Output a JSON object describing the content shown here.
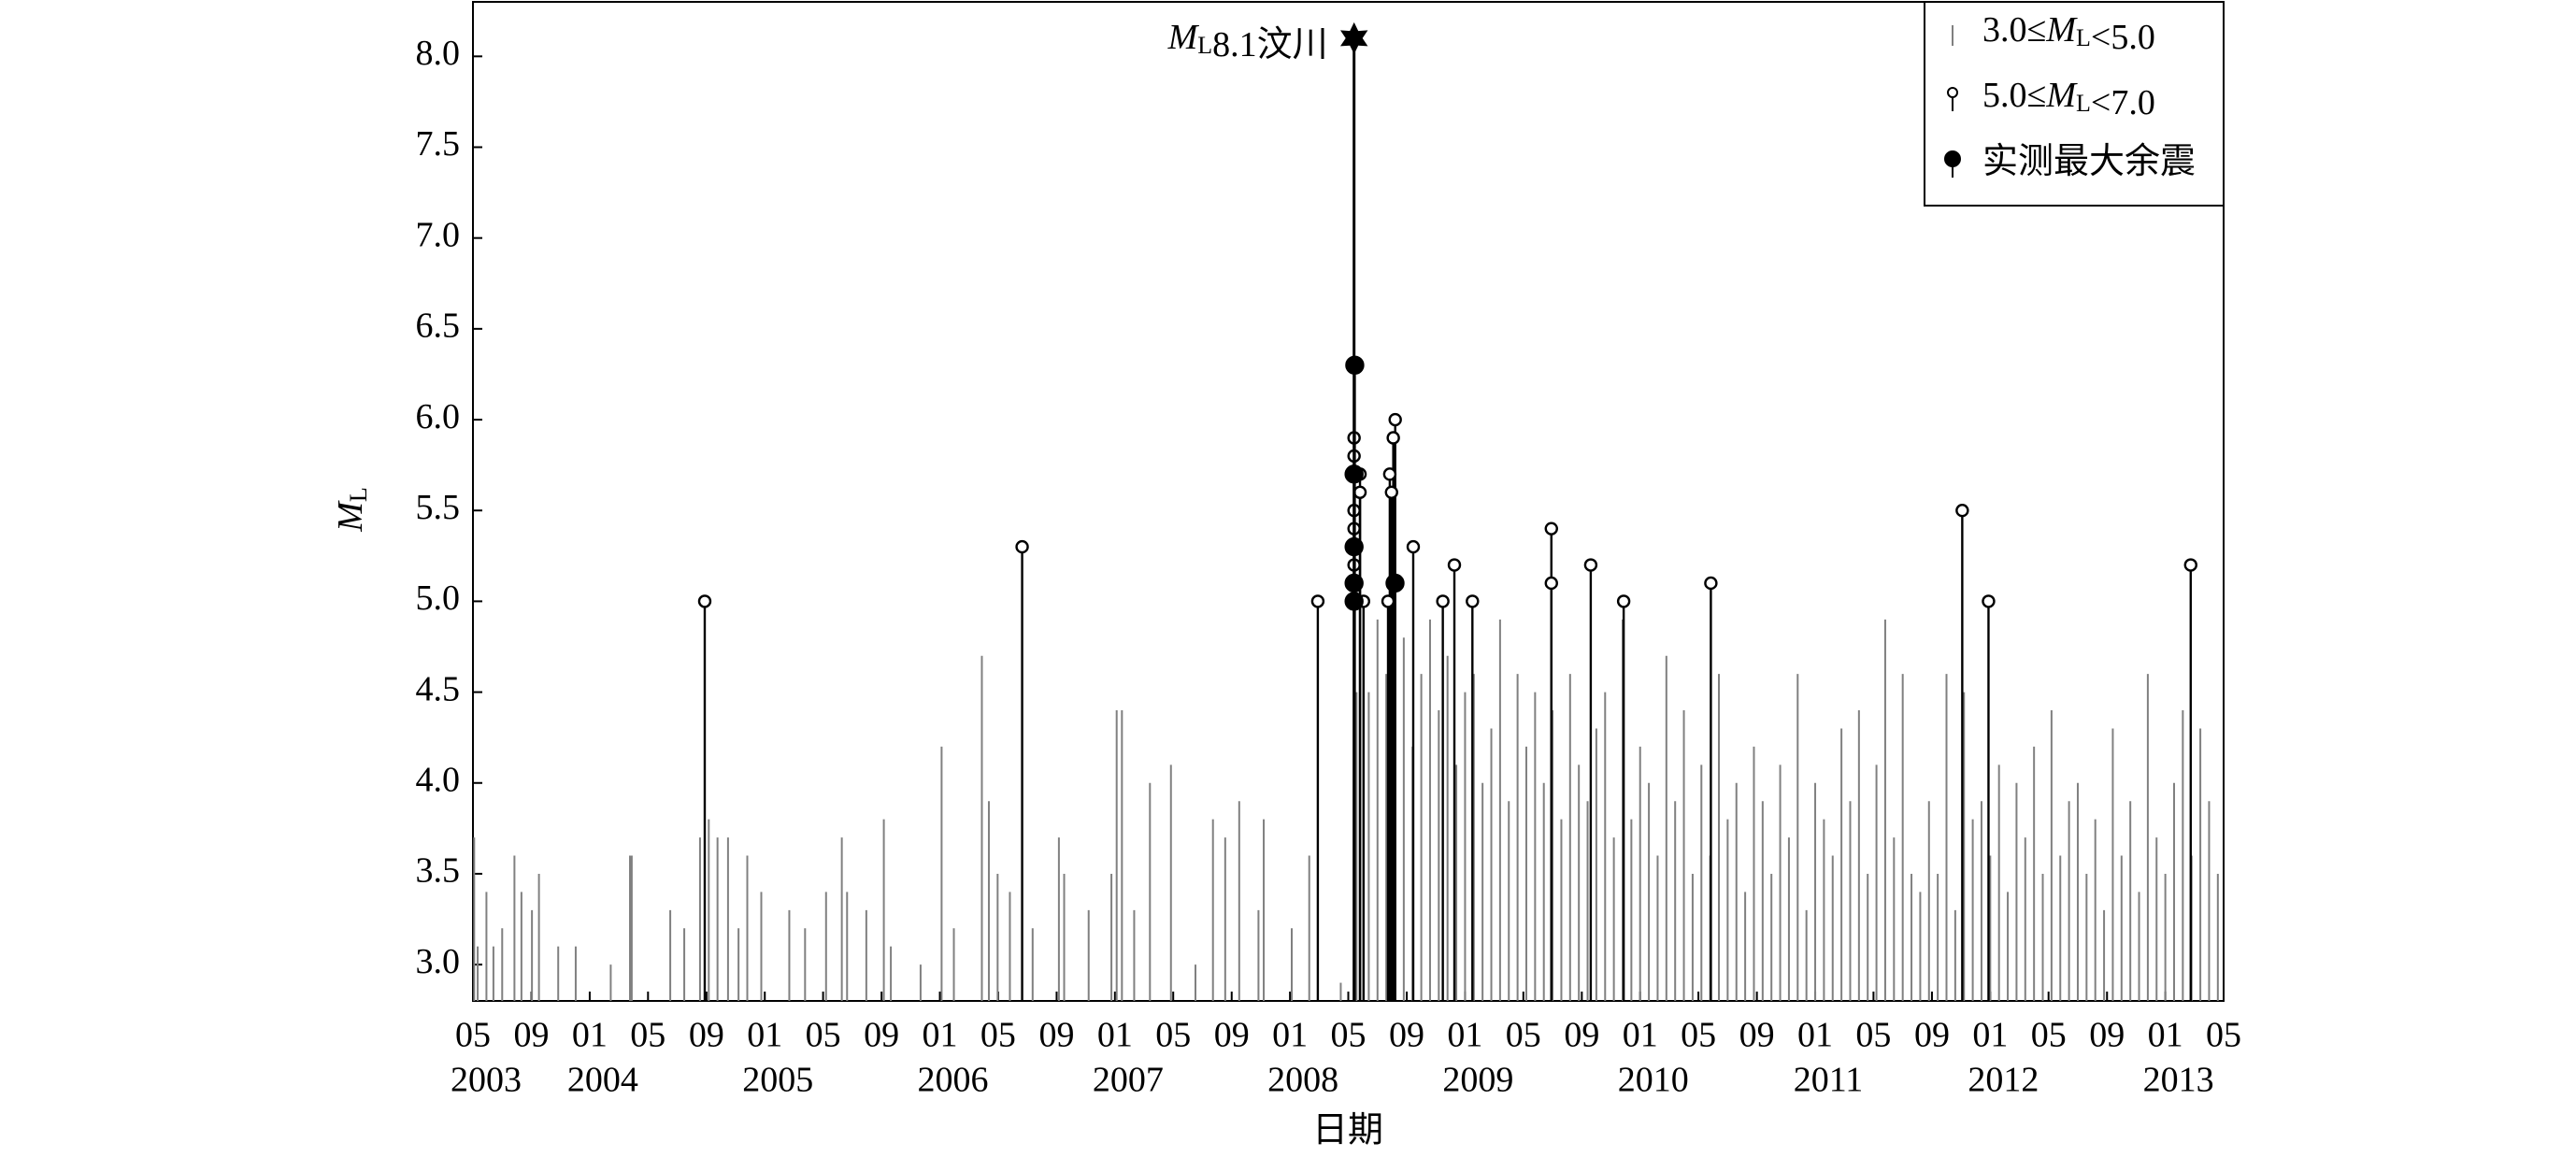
{
  "chart_data": {
    "type": "stem",
    "x_label": "日期",
    "y_label": "ML",
    "xlim": [
      2003.333,
      2013.333
    ],
    "ylim": [
      2.8,
      8.3
    ],
    "yticks": [
      {
        "value": 3,
        "label": "3.0"
      },
      {
        "value": 3.5,
        "label": "3.5"
      },
      {
        "value": 4,
        "label": "4.0"
      },
      {
        "value": 4.5,
        "label": "4.5"
      },
      {
        "value": 5,
        "label": "5.0"
      },
      {
        "value": 5.5,
        "label": "5.5"
      },
      {
        "value": 6,
        "label": "6.0"
      },
      {
        "value": 6.5,
        "label": "6.5"
      },
      {
        "value": 7,
        "label": "7.0"
      },
      {
        "value": 7.5,
        "label": "7.5"
      },
      {
        "value": 8,
        "label": "8.0"
      }
    ],
    "xticks": [
      {
        "value": 2003.333,
        "label": "05"
      },
      {
        "value": 2003.667,
        "label": "09"
      },
      {
        "value": 2004.0,
        "label": "01"
      },
      {
        "value": 2004.333,
        "label": "05"
      },
      {
        "value": 2004.667,
        "label": "09"
      },
      {
        "value": 2005.0,
        "label": "01"
      },
      {
        "value": 2005.333,
        "label": "05"
      },
      {
        "value": 2005.667,
        "label": "09"
      },
      {
        "value": 2006.0,
        "label": "01"
      },
      {
        "value": 2006.333,
        "label": "05"
      },
      {
        "value": 2006.667,
        "label": "09"
      },
      {
        "value": 2007.0,
        "label": "01"
      },
      {
        "value": 2007.333,
        "label": "05"
      },
      {
        "value": 2007.667,
        "label": "09"
      },
      {
        "value": 2008.0,
        "label": "01"
      },
      {
        "value": 2008.333,
        "label": "05"
      },
      {
        "value": 2008.667,
        "label": "09"
      },
      {
        "value": 2009.0,
        "label": "01"
      },
      {
        "value": 2009.333,
        "label": "05"
      },
      {
        "value": 2009.667,
        "label": "09"
      },
      {
        "value": 2010.0,
        "label": "01"
      },
      {
        "value": 2010.333,
        "label": "05"
      },
      {
        "value": 2010.667,
        "label": "09"
      },
      {
        "value": 2011.0,
        "label": "01"
      },
      {
        "value": 2011.333,
        "label": "05"
      },
      {
        "value": 2011.667,
        "label": "09"
      },
      {
        "value": 2012.0,
        "label": "01"
      },
      {
        "value": 2012.333,
        "label": "05"
      },
      {
        "value": 2012.667,
        "label": "09"
      },
      {
        "value": 2013.0,
        "label": "01"
      },
      {
        "value": 2013.333,
        "label": "05"
      }
    ],
    "year_labels": [
      {
        "value": 2003.333,
        "label": "2003"
      },
      {
        "value": 2004.0,
        "label": "2004"
      },
      {
        "value": 2005.0,
        "label": "2005"
      },
      {
        "value": 2006.0,
        "label": "2006"
      },
      {
        "value": 2007.0,
        "label": "2007"
      },
      {
        "value": 2008.0,
        "label": "2008"
      },
      {
        "value": 2009.0,
        "label": "2009"
      },
      {
        "value": 2010.0,
        "label": "2010"
      },
      {
        "value": 2011.0,
        "label": "2011"
      },
      {
        "value": 2012.0,
        "label": "2012"
      },
      {
        "value": 2013.0,
        "label": "2013"
      }
    ],
    "legend": "upper right",
    "mainshock": {
      "x": 2008.366,
      "value": 8.1,
      "label": "ML8.1汶川",
      "color": "#000000"
    },
    "series": [
      {
        "name": "3.0≤ML<5.0",
        "color": "#808080",
        "marker": "none",
        "x": [
          2003.34,
          2003.36,
          2003.41,
          2003.45,
          2003.5,
          2003.57,
          2003.61,
          2003.67,
          2003.71,
          2003.82,
          2003.92,
          2004.12,
          2004.23,
          2004.24,
          2004.46,
          2004.54,
          2004.63,
          2004.68,
          2004.73,
          2004.79,
          2004.85,
          2004.9,
          2004.98,
          2005.14,
          2005.23,
          2005.35,
          2005.44,
          2005.47,
          2005.58,
          2005.68,
          2005.72,
          2005.89,
          2006.01,
          2006.08,
          2006.24,
          2006.28,
          2006.33,
          2006.4,
          2006.53,
          2006.68,
          2006.71,
          2006.85,
          2006.98,
          2007.01,
          2007.04,
          2007.11,
          2007.2,
          2007.32,
          2007.46,
          2007.56,
          2007.63,
          2007.71,
          2007.82,
          2007.85,
          2008.01,
          2008.11,
          2008.29,
          2008.37,
          2008.38,
          2008.4,
          2008.45,
          2008.5,
          2008.55,
          2008.6,
          2008.65,
          2008.7,
          2008.75,
          2008.8,
          2008.85,
          2008.9,
          2008.95,
          2009.0,
          2009.05,
          2009.1,
          2009.15,
          2009.2,
          2009.25,
          2009.3,
          2009.35,
          2009.4,
          2009.45,
          2009.5,
          2009.55,
          2009.6,
          2009.65,
          2009.7,
          2009.75,
          2009.8,
          2009.85,
          2009.9,
          2009.95,
          2010.0,
          2010.05,
          2010.1,
          2010.15,
          2010.2,
          2010.25,
          2010.3,
          2010.35,
          2010.4,
          2010.45,
          2010.5,
          2010.55,
          2010.6,
          2010.65,
          2010.7,
          2010.75,
          2010.8,
          2010.85,
          2010.9,
          2010.95,
          2011.0,
          2011.05,
          2011.1,
          2011.15,
          2011.2,
          2011.25,
          2011.3,
          2011.35,
          2011.4,
          2011.45,
          2011.5,
          2011.55,
          2011.6,
          2011.65,
          2011.7,
          2011.75,
          2011.8,
          2011.85,
          2011.9,
          2011.95,
          2012.0,
          2012.05,
          2012.1,
          2012.15,
          2012.2,
          2012.25,
          2012.3,
          2012.35,
          2012.4,
          2012.45,
          2012.5,
          2012.55,
          2012.6,
          2012.65,
          2012.7,
          2012.75,
          2012.8,
          2012.85,
          2012.9,
          2012.95,
          2013.0,
          2013.05,
          2013.1,
          2013.15,
          2013.2,
          2013.25,
          2013.3
        ],
        "values": [
          3.7,
          3.1,
          3.4,
          3.1,
          3.2,
          3.6,
          3.4,
          3.3,
          3.5,
          3.1,
          3.1,
          3.0,
          3.6,
          3.6,
          3.3,
          3.2,
          3.7,
          3.8,
          3.7,
          3.7,
          3.2,
          3.6,
          3.4,
          3.3,
          3.2,
          3.4,
          3.7,
          3.4,
          3.3,
          3.8,
          3.1,
          3.0,
          4.2,
          3.2,
          4.7,
          3.9,
          3.5,
          3.4,
          3.2,
          3.7,
          3.5,
          3.3,
          3.5,
          4.4,
          4.4,
          3.3,
          4.0,
          4.1,
          3.0,
          3.8,
          3.7,
          3.9,
          3.3,
          3.8,
          3.2,
          3.6,
          2.9,
          4.7,
          4.5,
          4.7,
          4.5,
          4.9,
          4.6,
          4.3,
          4.8,
          4.2,
          4.6,
          4.9,
          4.4,
          4.7,
          4.1,
          4.5,
          4.6,
          4.0,
          4.3,
          4.9,
          3.9,
          4.6,
          4.2,
          4.5,
          4.0,
          4.4,
          3.8,
          4.6,
          4.1,
          3.9,
          4.3,
          4.5,
          3.7,
          4.9,
          3.8,
          4.2,
          4.0,
          3.6,
          4.7,
          3.9,
          4.4,
          3.5,
          4.1,
          3.6,
          4.6,
          3.8,
          4.0,
          3.4,
          4.2,
          3.9,
          3.5,
          4.1,
          3.7,
          4.6,
          3.3,
          4.0,
          3.8,
          3.6,
          4.3,
          3.9,
          4.4,
          3.5,
          4.1,
          4.9,
          3.7,
          4.6,
          3.5,
          3.4,
          3.9,
          3.5,
          4.6,
          3.3,
          4.5,
          3.8,
          3.9,
          3.6,
          4.1,
          3.4,
          4.0,
          3.7,
          4.2,
          3.5,
          4.4,
          3.6,
          3.9,
          4.0,
          3.5,
          3.8,
          3.3,
          4.3,
          3.6,
          3.9,
          3.4,
          4.6,
          3.7,
          3.5,
          4.0,
          4.4,
          3.6,
          4.3,
          3.9,
          3.5
        ]
      },
      {
        "name": "5.0≤ML<7.0",
        "color": "#000000",
        "marker": "open",
        "x": [
          2004.657,
          2006.47,
          2008.159,
          2008.366,
          2008.366,
          2008.366,
          2008.366,
          2008.366,
          2008.4,
          2008.4,
          2008.42,
          2008.57,
          2008.58,
          2008.59,
          2008.601,
          2008.56,
          2008.704,
          2008.873,
          2008.939,
          2009.042,
          2009.493,
          2009.493,
          2009.718,
          2009.906,
          2010.404,
          2011.84,
          2011.99,
          2013.145
        ],
        "values": [
          5.0,
          5.3,
          5.0,
          5.8,
          5.9,
          5.5,
          5.4,
          5.2,
          5.7,
          5.6,
          5.0,
          5.7,
          5.6,
          5.9,
          6.0,
          5.0,
          5.3,
          5.0,
          5.2,
          5.0,
          5.4,
          5.1,
          5.2,
          5.0,
          5.1,
          5.5,
          5.0,
          5.2
        ]
      },
      {
        "name": "实测最大余震",
        "color": "#000000",
        "marker": "filled",
        "x": [
          2008.37,
          2008.366,
          2008.366,
          2008.366,
          2008.366,
          2008.6
        ],
        "values": [
          6.3,
          5.7,
          5.3,
          5.1,
          5.0,
          5.1
        ]
      }
    ]
  }
}
